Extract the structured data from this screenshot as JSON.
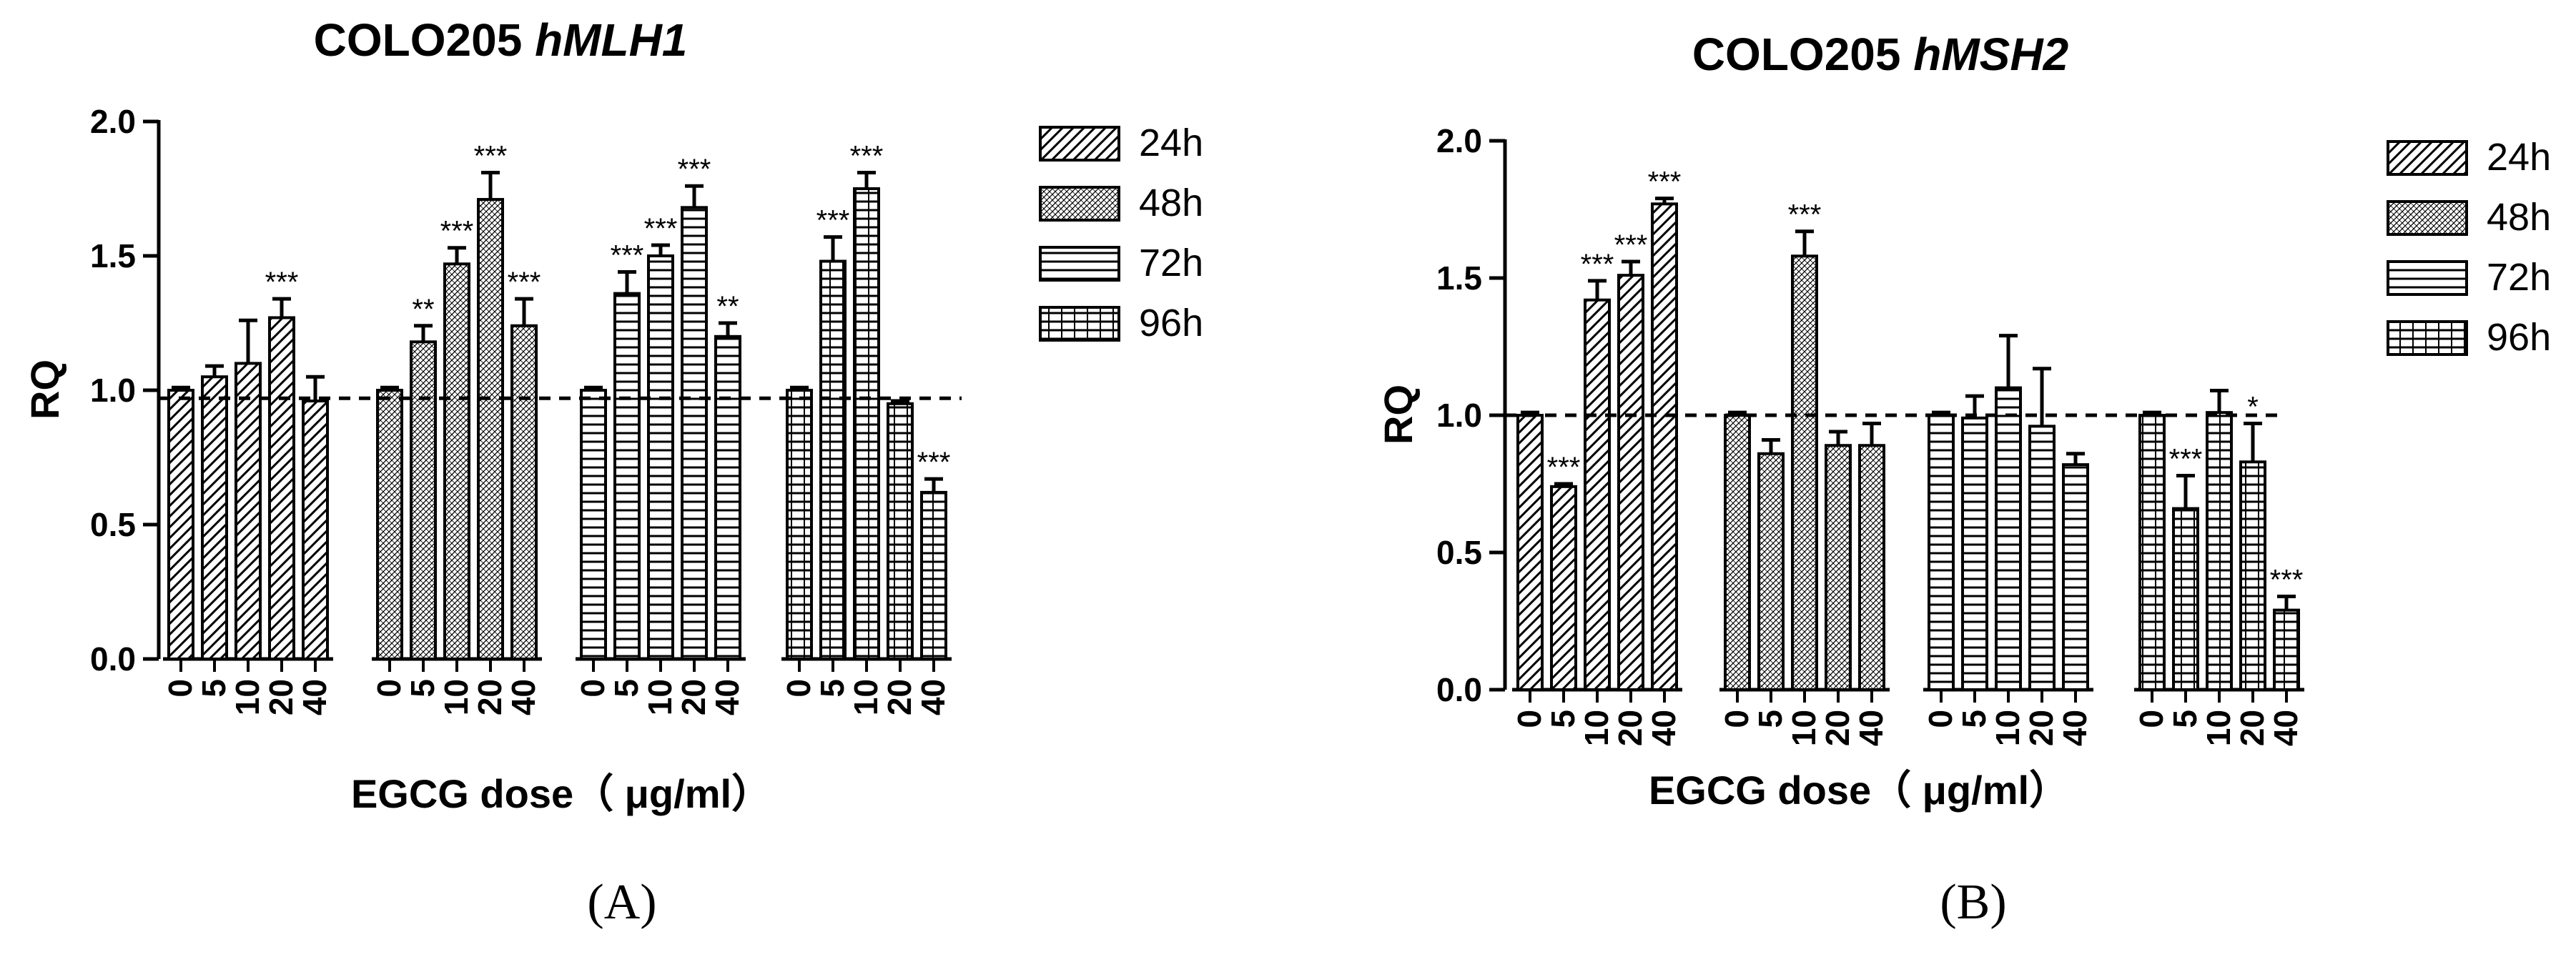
{
  "chart_data": [
    {
      "panel": "(A)",
      "type": "bar",
      "title_prefix": "COLO205 ",
      "title_gene": "hMLH1",
      "xlabel": "EGCG dose（ μg/ml）",
      "ylabel": "RQ",
      "ylim": [
        0,
        2.0
      ],
      "yticks": [
        "0.0",
        "0.5",
        "1.0",
        "1.5",
        "2.0"
      ],
      "reference_line": 0.97,
      "groups": [
        {
          "name": "24h",
          "doses": [
            "0",
            "5",
            "10",
            "20",
            "40"
          ],
          "values": [
            1.0,
            1.05,
            1.1,
            1.27,
            0.96
          ],
          "errors": [
            0.01,
            0.04,
            0.16,
            0.07,
            0.09
          ],
          "sig": [
            "",
            "",
            "",
            "***",
            ""
          ]
        },
        {
          "name": "48h",
          "doses": [
            "0",
            "5",
            "10",
            "20",
            "40"
          ],
          "values": [
            1.0,
            1.18,
            1.47,
            1.71,
            1.24
          ],
          "errors": [
            0.01,
            0.06,
            0.06,
            0.1,
            0.1
          ],
          "sig": [
            "",
            "**",
            "***",
            "***",
            "***"
          ]
        },
        {
          "name": "72h",
          "doses": [
            "0",
            "5",
            "10",
            "20",
            "40"
          ],
          "values": [
            1.0,
            1.36,
            1.5,
            1.68,
            1.2
          ],
          "errors": [
            0.01,
            0.08,
            0.04,
            0.08,
            0.05
          ],
          "sig": [
            "",
            "***",
            "***",
            "***",
            "**"
          ]
        },
        {
          "name": "96h",
          "doses": [
            "0",
            "5",
            "10",
            "20",
            "40"
          ],
          "values": [
            1.0,
            1.48,
            1.75,
            0.95,
            0.62
          ],
          "errors": [
            0.01,
            0.09,
            0.06,
            0.01,
            0.05
          ],
          "sig": [
            "",
            "***",
            "***",
            "",
            "***"
          ]
        }
      ],
      "legend": [
        "24h",
        "48h",
        "72h",
        "96h"
      ]
    },
    {
      "panel": "(B)",
      "type": "bar",
      "title_prefix": "COLO205 ",
      "title_gene": "hMSH2",
      "xlabel": "EGCG dose（ μg/ml）",
      "ylabel": "RQ",
      "ylim": [
        0,
        2.0
      ],
      "yticks": [
        "0.0",
        "0.5",
        "1.0",
        "1.5",
        "2.0"
      ],
      "reference_line": 1.0,
      "groups": [
        {
          "name": "24h",
          "doses": [
            "0",
            "5",
            "10",
            "20",
            "40"
          ],
          "values": [
            1.0,
            0.74,
            1.42,
            1.51,
            1.77
          ],
          "errors": [
            0.01,
            0.01,
            0.07,
            0.05,
            0.02
          ],
          "sig": [
            "",
            "***",
            "***",
            "***",
            "***"
          ]
        },
        {
          "name": "48h",
          "doses": [
            "0",
            "5",
            "10",
            "20",
            "40"
          ],
          "values": [
            1.0,
            0.86,
            1.58,
            0.89,
            0.89
          ],
          "errors": [
            0.01,
            0.05,
            0.09,
            0.05,
            0.08
          ],
          "sig": [
            "",
            "",
            "***",
            "",
            ""
          ]
        },
        {
          "name": "72h",
          "doses": [
            "0",
            "5",
            "10",
            "20",
            "40"
          ],
          "values": [
            1.0,
            0.99,
            1.1,
            0.96,
            0.82
          ],
          "errors": [
            0.01,
            0.08,
            0.19,
            0.21,
            0.04
          ],
          "sig": [
            "",
            "",
            "",
            "",
            ""
          ]
        },
        {
          "name": "96h",
          "doses": [
            "0",
            "5",
            "10",
            "20",
            "40"
          ],
          "values": [
            1.0,
            0.66,
            1.01,
            0.83,
            0.29
          ],
          "errors": [
            0.01,
            0.12,
            0.08,
            0.14,
            0.05
          ],
          "sig": [
            "",
            "***",
            "",
            "*",
            "***"
          ]
        }
      ],
      "legend": [
        "24h",
        "48h",
        "72h",
        "96h"
      ]
    }
  ]
}
